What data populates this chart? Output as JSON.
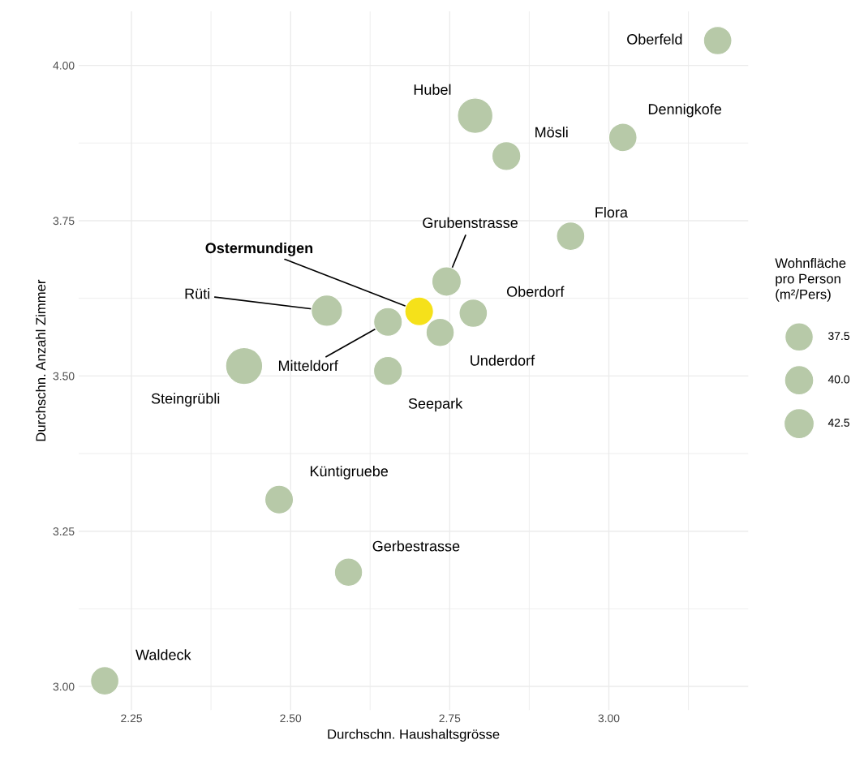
{
  "chart_data": {
    "type": "bubble",
    "xlabel": "Durchschn. Haushaltsgrösse",
    "ylabel": "Durchschn. Anzahl Zimmer",
    "legend_title": "Wohnfläche\npro Person\n(m²/Pers)",
    "xlim": [
      2.167,
      3.219
    ],
    "ylim": [
      2.962,
      4.087
    ],
    "xticks": [
      {
        "value": 2.25,
        "label": "2.25"
      },
      {
        "value": 2.375,
        "label": null
      },
      {
        "value": 2.5,
        "label": "2.50"
      },
      {
        "value": 2.625,
        "label": null
      },
      {
        "value": 2.75,
        "label": "2.75"
      },
      {
        "value": 2.875,
        "label": null
      },
      {
        "value": 3.0,
        "label": "3.00"
      },
      {
        "value": 3.125,
        "label": null
      }
    ],
    "yticks": [
      {
        "value": 3.0,
        "label": "3.00"
      },
      {
        "value": 3.125,
        "label": null
      },
      {
        "value": 3.25,
        "label": "3.25"
      },
      {
        "value": 3.375,
        "label": null
      },
      {
        "value": 3.5,
        "label": "3.50"
      },
      {
        "value": 3.625,
        "label": null
      },
      {
        "value": 3.75,
        "label": "3.75"
      },
      {
        "value": 3.875,
        "label": null
      },
      {
        "value": 4.0,
        "label": "4.00"
      }
    ],
    "grid": true,
    "size_legend": [
      {
        "value": 37.5,
        "label": "37.5"
      },
      {
        "value": 40.0,
        "label": "40.0"
      },
      {
        "value": 42.5,
        "label": "42.5"
      }
    ],
    "series": [
      {
        "color": "#b7c9a8",
        "x": [
          3.171,
          2.79,
          2.839,
          3.022,
          2.94,
          2.745,
          2.787,
          2.735,
          2.653,
          2.557,
          2.653,
          2.427,
          2.482,
          2.591,
          2.208
        ],
        "values": [
          4.04,
          3.919,
          3.854,
          3.884,
          3.725,
          3.652,
          3.601,
          3.57,
          3.587,
          3.605,
          3.508,
          3.516,
          3.301,
          3.184,
          3.009
        ],
        "sizes": [
          37.8,
          59.2,
          39.2,
          37.7,
          37.8,
          40.7,
          37.8,
          37.6,
          38.7,
          46.0,
          39.1,
          64.7,
          38.6,
          37.3,
          37.7
        ]
      },
      {
        "color": "#f5e11a",
        "x": [
          2.702
        ],
        "values": [
          3.604
        ],
        "sizes": [
          38.8
        ]
      }
    ],
    "annotations": [
      {
        "text": "Oberfeld",
        "x": 3.171,
        "y": 4.04
      },
      {
        "text": "Hubel",
        "x": 2.79,
        "y": 3.919
      },
      {
        "text": "Mösli",
        "x": 2.839,
        "y": 3.854
      },
      {
        "text": "Dennigkofe",
        "x": 3.022,
        "y": 3.884
      },
      {
        "text": "Flora",
        "x": 2.94,
        "y": 3.725
      },
      {
        "text": "Grubenstrasse",
        "x": 2.745,
        "y": 3.652
      },
      {
        "text": "Ostermundigen",
        "x": 2.702,
        "y": 3.604
      },
      {
        "text": "Oberdorf",
        "x": 2.787,
        "y": 3.601
      },
      {
        "text": "Underdorf",
        "x": 2.735,
        "y": 3.57
      },
      {
        "text": "Mitteldorf",
        "x": 2.653,
        "y": 3.587
      },
      {
        "text": "Rüti",
        "x": 2.557,
        "y": 3.605
      },
      {
        "text": "Seepark",
        "x": 2.653,
        "y": 3.508
      },
      {
        "text": "Steingrübli",
        "x": 2.427,
        "y": 3.516
      },
      {
        "text": "Küntigruebe",
        "x": 2.482,
        "y": 3.301
      },
      {
        "text": "Gerbestrasse",
        "x": 2.591,
        "y": 3.184
      },
      {
        "text": "Waldeck",
        "x": 2.208,
        "y": 3.009
      }
    ]
  }
}
